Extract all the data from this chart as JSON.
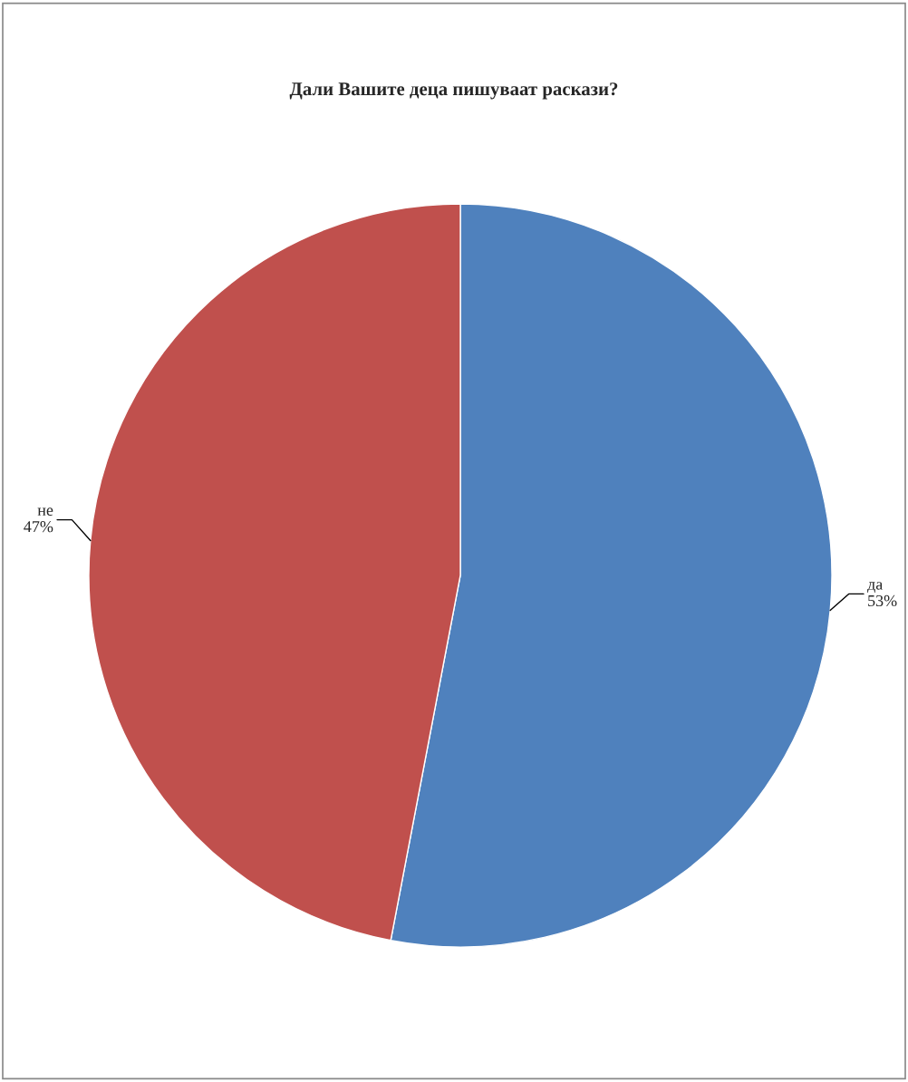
{
  "chart_data": {
    "type": "pie",
    "title": "Дали Вашите деца пишуваат раскази?",
    "categories": [
      "да",
      "не"
    ],
    "values": [
      53,
      47
    ],
    "colors": [
      "#4f81bd",
      "#c0504d"
    ],
    "value_labels": [
      "53%",
      "47%"
    ],
    "legend": false
  }
}
